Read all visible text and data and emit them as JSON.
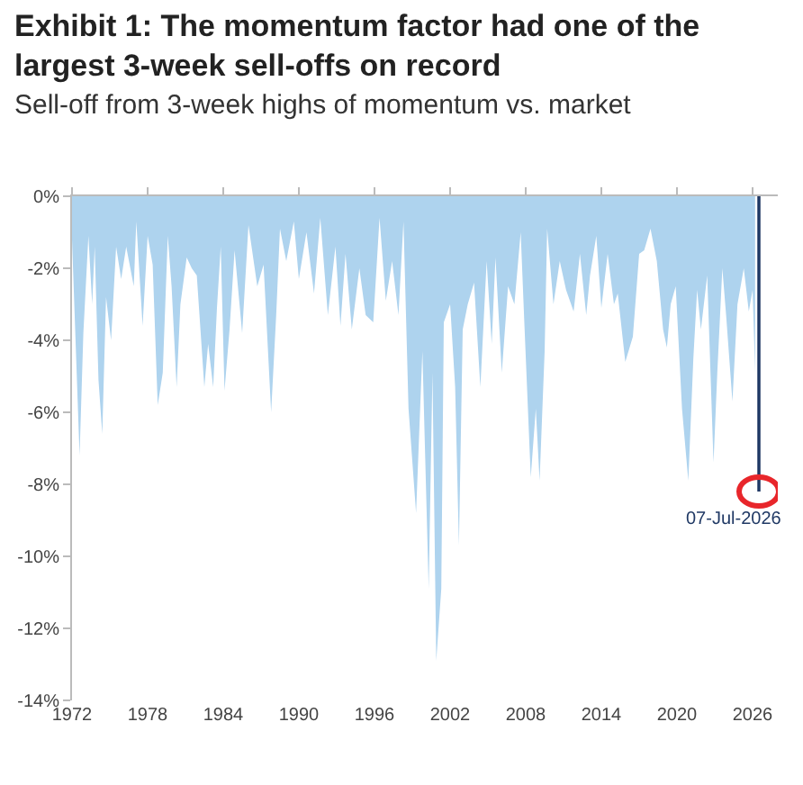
{
  "chart_data": {
    "type": "area",
    "title": "Exhibit 1: The momentum factor had one of the largest 3-week sell-offs on record",
    "subtitle": "Sell-off from 3-week highs of momentum vs. market",
    "series": [
      {
        "color": "#aed3ee",
        "x": [
          1972.0,
          1972.6,
          1972.9,
          1973.3,
          1973.6,
          1973.8,
          1974.1,
          1974.4,
          1974.7,
          1975.1,
          1975.5,
          1975.9,
          1976.3,
          1976.9,
          1977.1,
          1977.6,
          1978.0,
          1978.4,
          1978.8,
          1979.2,
          1979.6,
          1979.9,
          1980.3,
          1980.6,
          1981.1,
          1981.5,
          1981.9,
          1982.5,
          1982.8,
          1983.2,
          1983.5,
          1983.8,
          1984.1,
          1984.5,
          1984.9,
          1985.5,
          1986.0,
          1986.7,
          1987.2,
          1987.8,
          1988.2,
          1988.5,
          1989.0,
          1989.6,
          1990.0,
          1990.6,
          1991.2,
          1991.7,
          1992.3,
          1992.9,
          1993.3,
          1993.7,
          1994.2,
          1994.8,
          1995.3,
          1995.9,
          1996.4,
          1996.9,
          1997.4,
          1997.9,
          1998.3,
          1998.7,
          1999.3,
          1999.8,
          2000.3,
          2000.6,
          2000.9,
          2001.3,
          2001.5,
          2002.0,
          2002.4,
          2002.7,
          2003.0,
          2003.4,
          2003.9,
          2004.4,
          2004.9,
          2005.3,
          2005.6,
          2006.1,
          2006.6,
          2007.1,
          2007.6,
          2007.9,
          2008.4,
          2008.8,
          2009.1,
          2009.5,
          2009.7,
          2010.2,
          2010.7,
          2011.2,
          2011.8,
          2012.3,
          2012.8,
          2013.1,
          2013.6,
          2014.0,
          2014.5,
          2015.0,
          2015.3,
          2015.9,
          2016.5,
          2017.0,
          2017.4,
          2017.9,
          2018.4,
          2018.9,
          2019.2,
          2019.5,
          2019.9,
          2020.4,
          2020.9,
          2021.3,
          2021.6,
          2021.9,
          2022.4,
          2022.9,
          2023.2,
          2023.6,
          2023.9,
          2024.4,
          2024.8,
          2025.3,
          2025.7,
          2026.0,
          2026.2
        ],
        "values": [
          -1.2,
          -7.2,
          -3.8,
          -1.1,
          -3.0,
          -1.4,
          -5.1,
          -6.6,
          -2.8,
          -4.0,
          -1.4,
          -2.3,
          -1.4,
          -2.5,
          -0.7,
          -3.6,
          -1.1,
          -1.9,
          -5.8,
          -4.9,
          -1.1,
          -2.5,
          -5.3,
          -3.0,
          -1.7,
          -2.0,
          -2.2,
          -5.3,
          -4.1,
          -5.3,
          -3.1,
          -1.4,
          -5.4,
          -3.7,
          -1.5,
          -3.8,
          -0.8,
          -2.5,
          -1.9,
          -6.0,
          -3.3,
          -0.9,
          -1.8,
          -0.7,
          -2.3,
          -1.0,
          -2.7,
          -0.6,
          -3.3,
          -1.4,
          -3.6,
          -1.6,
          -3.7,
          -2.0,
          -3.3,
          -3.5,
          -0.6,
          -2.9,
          -1.8,
          -3.3,
          -0.7,
          -5.9,
          -8.8,
          -4.3,
          -10.9,
          -4.9,
          -12.9,
          -10.9,
          -3.5,
          -3.0,
          -5.3,
          -9.7,
          -3.7,
          -3.0,
          -2.4,
          -5.3,
          -1.8,
          -4.1,
          -1.7,
          -4.9,
          -2.5,
          -3.0,
          -1.0,
          -3.6,
          -7.8,
          -5.9,
          -7.9,
          -4.3,
          -0.9,
          -3.0,
          -1.8,
          -2.6,
          -3.2,
          -1.6,
          -3.3,
          -2.2,
          -1.1,
          -3.1,
          -1.6,
          -3.0,
          -2.7,
          -4.6,
          -3.9,
          -1.6,
          -1.5,
          -0.9,
          -1.8,
          -3.7,
          -4.2,
          -3.0,
          -2.5,
          -5.9,
          -7.9,
          -4.5,
          -2.6,
          -3.7,
          -2.2,
          -7.4,
          -4.9,
          -2.0,
          -3.3,
          -5.7,
          -3.0,
          -2.0,
          -3.2,
          -2.6,
          -4.9
        ]
      },
      {
        "type": "bar",
        "color": "#1f3864",
        "x": [
          2026.5
        ],
        "values": [
          -8.2
        ]
      }
    ],
    "annotations": [
      {
        "text": "07-Jul-2026",
        "x": 2026.5,
        "y": -8.2
      }
    ],
    "xlim": [
      1972,
      2028
    ],
    "xticks": [
      1972,
      1978,
      1984,
      1990,
      1996,
      2002,
      2008,
      2014,
      2020,
      2026
    ],
    "ylim": [
      -14,
      0
    ],
    "yticks": [
      {
        "value": 0,
        "label": "0%"
      },
      {
        "value": -2,
        "label": "-2%"
      },
      {
        "value": -4,
        "label": "-4%"
      },
      {
        "value": -6,
        "label": "-6%"
      },
      {
        "value": -8,
        "label": "-8%"
      },
      {
        "value": -10,
        "label": "-10%"
      },
      {
        "value": -12,
        "label": "-12%"
      },
      {
        "value": -14,
        "label": "-14%"
      }
    ],
    "grid": false,
    "legend": false
  }
}
